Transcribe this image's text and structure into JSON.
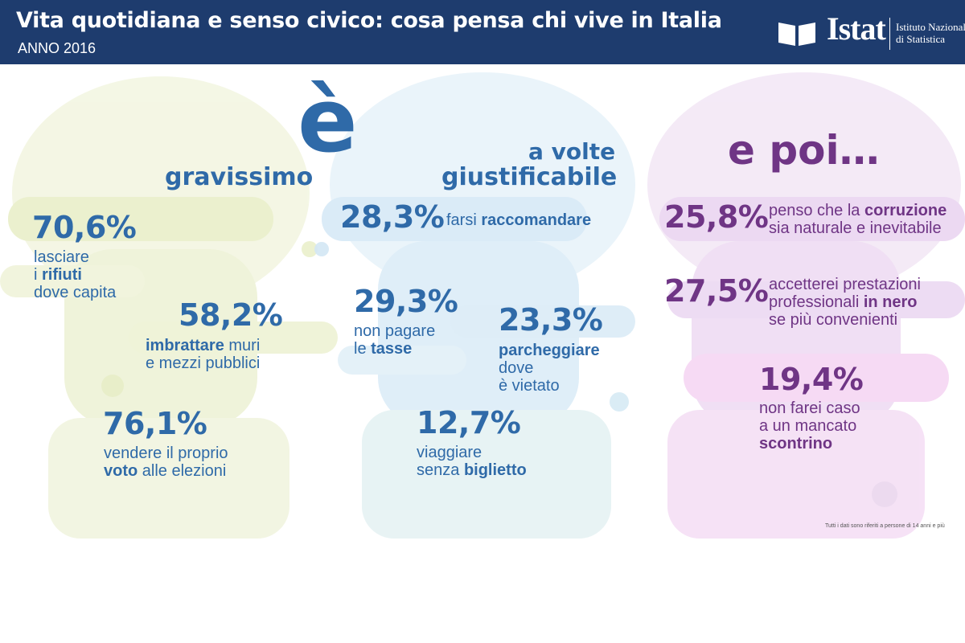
{
  "header": {
    "title": "Vita quotidiana e senso civico: cosa pensa chi vive in Italia",
    "year": "ANNO 2016",
    "logo_name": "Istat",
    "logo_institute_line1": "Istituto Nazionale",
    "logo_institute_line2": "di Statistica"
  },
  "colors": {
    "header_bg": "#1e3c6e",
    "panel_blue_text": "#2f6aa8",
    "panel_purple_text": "#6f3585",
    "head1_tint": "#eef2d2",
    "head2_tint": "#d9ecf7",
    "head3_tint": "#f1ddf4"
  },
  "chart_data": {
    "type": "table",
    "columns": [
      {
        "heading_accent": "è",
        "heading": "gravissimo",
        "items": [
          {
            "value": "70,6%",
            "lines": [
              "lasciare",
              "i rifiuti",
              "dove capita"
            ]
          },
          {
            "value": "58,2%",
            "lines": [
              "imbrattare muri",
              "e mezzi pubblici"
            ]
          },
          {
            "value": "76,1%",
            "lines": [
              "vendere il proprio",
              "voto alle elezioni"
            ]
          }
        ]
      },
      {
        "heading_line1": "a volte",
        "heading_line2": "giustificabile",
        "items": [
          {
            "value": "28,3%",
            "lines": [
              "farsi raccomandare"
            ]
          },
          {
            "value": "29,3%",
            "lines": [
              "non pagare",
              "le tasse"
            ]
          },
          {
            "value": "23,3%",
            "lines": [
              "parcheggiare",
              "dove",
              "è vietato"
            ]
          },
          {
            "value": "12,7%",
            "lines": [
              "viaggiare",
              "senza biglietto"
            ]
          }
        ]
      },
      {
        "heading": "e poi…",
        "items": [
          {
            "value": "25,8%",
            "lines": [
              "penso che la corruzione",
              "sia naturale e inevitabile"
            ]
          },
          {
            "value": "27,5%",
            "lines": [
              "accetterei prestazioni",
              "professionali in nero",
              "se più convenienti"
            ]
          },
          {
            "value": "19,4%",
            "lines": [
              "non farei caso",
              "a un mancato",
              "scontrino"
            ]
          }
        ]
      }
    ]
  },
  "footnote": "Tutti i dati sono riferiti a persone di 14 anni e più"
}
